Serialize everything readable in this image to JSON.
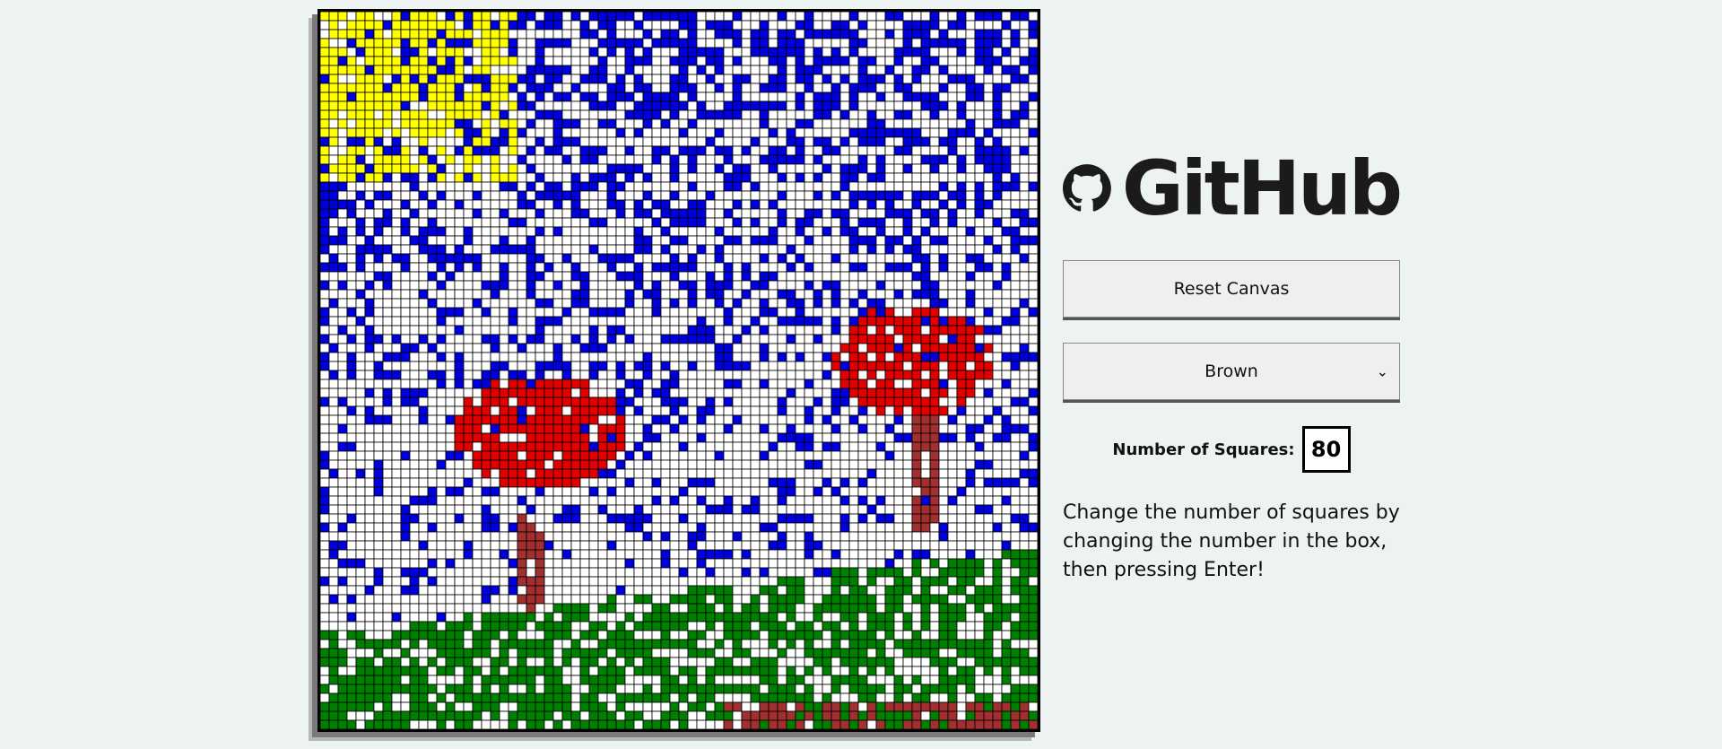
{
  "logo": {
    "text": "GitHub",
    "icon": "github-octocat-icon"
  },
  "controls": {
    "reset_label": "Reset Canvas",
    "color_selected": "Brown",
    "squares_label": "Number of Squares:",
    "squares_value": "80",
    "instructions": "Change the number of squares by changing the number in the box, then pressing Enter!"
  },
  "canvas": {
    "grid_size": 80,
    "colors": {
      "background": "#ffffff",
      "grid": "#000000",
      "yellow": "#ffff00",
      "blue": "#0000dd",
      "red": "#e00000",
      "brown": "#a33030",
      "green": "#008000"
    }
  }
}
